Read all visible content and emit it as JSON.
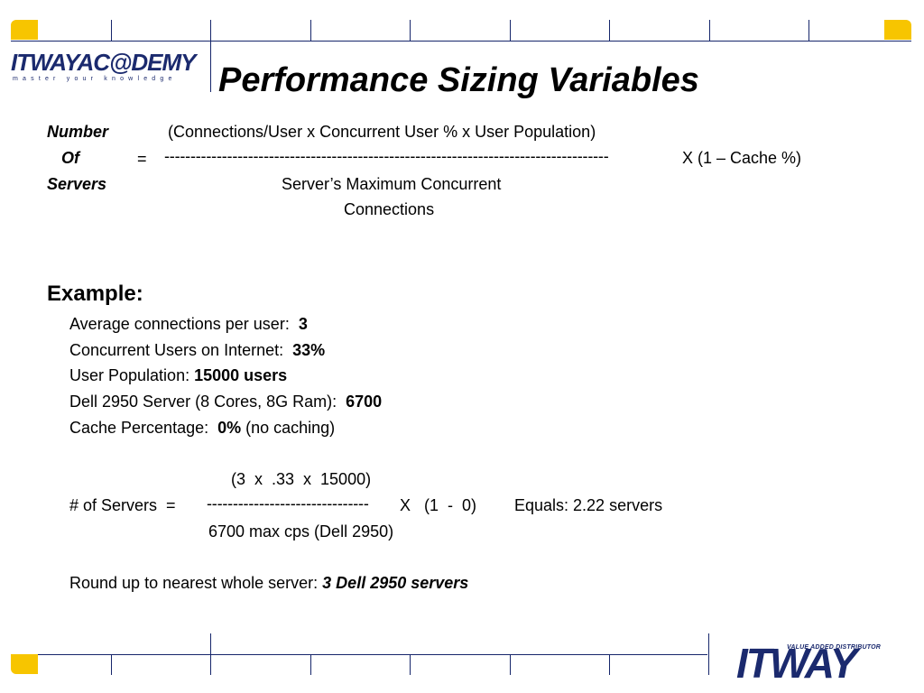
{
  "branding": {
    "academy_logo": "ITWAYAC@DEMY",
    "academy_tagline": "master your knowledge",
    "itway_logo": "ITWAY",
    "itway_tagline": "VALUE ADDED DISTRIBUTOR"
  },
  "colors": {
    "navy": "#16266b",
    "accent_yellow": "#f7c500"
  },
  "title": "Performance Sizing Variables",
  "formula": {
    "label_number": "Number",
    "label_of": "Of",
    "label_servers": "Servers",
    "equals": "=",
    "numerator": "(Connections/User  x Concurrent User %  x  User Population)",
    "divider": "-------------------------------------------------------------------------------------",
    "multiplier": "X   (1 – Cache %)",
    "denominator_line1": "Server’s Maximum Concurrent",
    "denominator_line2": "Connections"
  },
  "example": {
    "heading": "Example:",
    "rows": [
      {
        "label": "Average connections per user:  ",
        "value": "3",
        "suffix": ""
      },
      {
        "label": "Concurrent Users on Internet:  ",
        "value": "33%",
        "suffix": ""
      },
      {
        "label": "User Population: ",
        "value": "15000 users",
        "suffix": ""
      },
      {
        "label": "Dell 2950 Server (8 Cores, 8G Ram):  ",
        "value": "6700",
        "suffix": ""
      },
      {
        "label": "Cache Percentage:  ",
        "value": "0%",
        "suffix": " (no caching)"
      }
    ],
    "calc": {
      "numerator": "(3  x  .33  x  15000)",
      "label": "# of Servers  =",
      "divider": "-------------------------------",
      "multiplier": "X   (1  -  0)",
      "result": "Equals: 2.22 servers",
      "denominator": "6700 max cps (Dell 2950)"
    },
    "conclusion_label": "Round up to nearest whole server: ",
    "conclusion_value": "3 Dell 2950 servers"
  }
}
